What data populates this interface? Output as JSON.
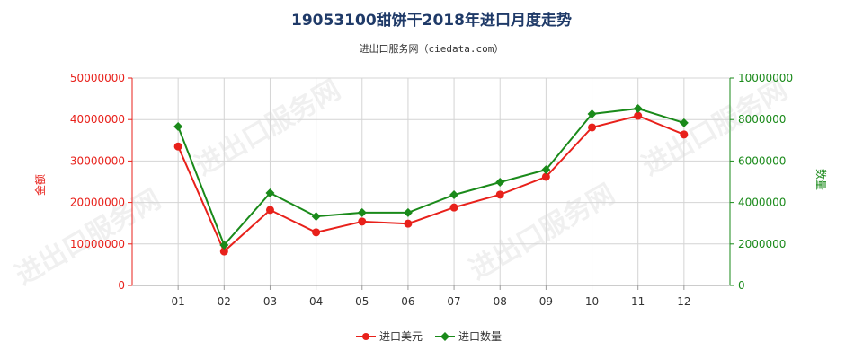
{
  "watermark": "进出口服务网",
  "colors": {
    "title": "#1f3a68",
    "grid": "#d4d4d4"
  },
  "chart_data": {
    "type": "line",
    "title": "19053100甜饼干2018年进口月度走势",
    "subtitle": "进出口服务网（ciedata.com）",
    "categories": [
      "01",
      "02",
      "03",
      "04",
      "05",
      "06",
      "07",
      "08",
      "09",
      "10",
      "11",
      "12"
    ],
    "y_left": {
      "label": "金额",
      "color": "#e8211b",
      "ylim": [
        0,
        50000000
      ],
      "ticks": [
        0,
        10000000,
        20000000,
        30000000,
        40000000,
        50000000
      ]
    },
    "y_right": {
      "label": "数量",
      "color": "#1a8a1a",
      "ylim": [
        0,
        10000000
      ],
      "ticks": [
        0,
        2000000,
        4000000,
        6000000,
        8000000,
        10000000
      ]
    },
    "series": [
      {
        "name": "进口美元",
        "y_axis": "left",
        "color": "#e8211b",
        "marker": "circle",
        "values": [
          33500000,
          8200000,
          18200000,
          12800000,
          15400000,
          14900000,
          18800000,
          21900000,
          26200000,
          38100000,
          40900000,
          36400000
        ]
      },
      {
        "name": "进口数量",
        "y_axis": "right",
        "color": "#1a8a1a",
        "marker": "diamond",
        "values": [
          7660000,
          1950000,
          4460000,
          3330000,
          3510000,
          3510000,
          4370000,
          4980000,
          5580000,
          8270000,
          8530000,
          7840000
        ]
      }
    ],
    "grid": true,
    "legend": "bottom"
  }
}
